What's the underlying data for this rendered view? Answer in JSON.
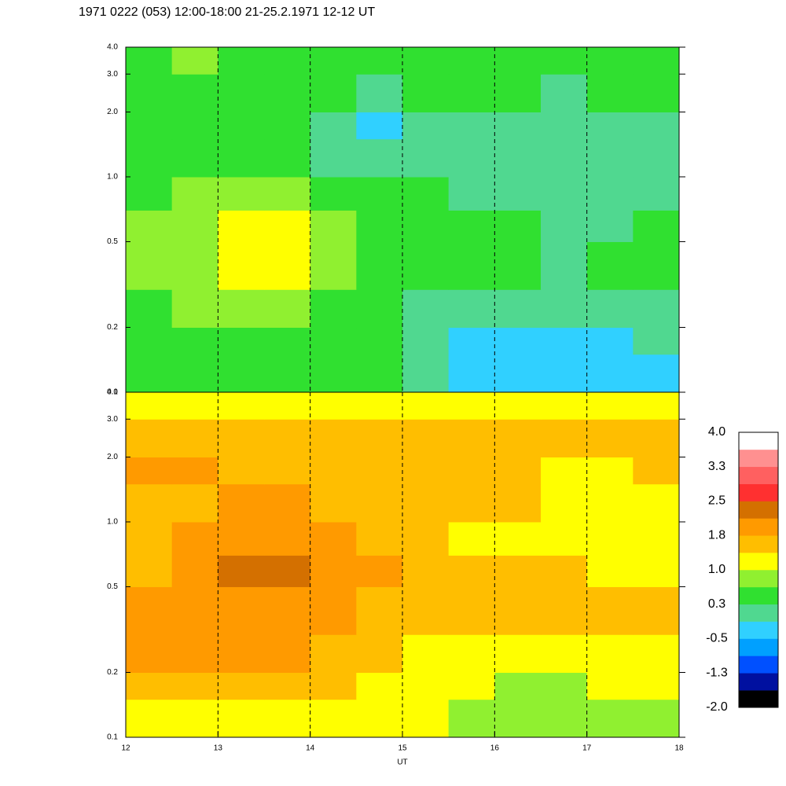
{
  "chart_data": {
    "type": "heatmap",
    "title": "1971 0222 (053) 12:00-18:00 21-25.2.1971  12-12 UT",
    "xlabel": "UT",
    "xlim": [
      12,
      18
    ],
    "xticks": [
      12,
      13,
      14,
      15,
      16,
      17,
      18
    ],
    "ylim": [
      0.1,
      4.0
    ],
    "log_y": true,
    "yticks": [
      0.1,
      0.2,
      0.5,
      {
        "value": 1.0,
        "label": "1.0"
      },
      {
        "value": 2.0,
        "label": "2.0"
      },
      {
        "value": 3.0,
        "label": "3.0"
      },
      {
        "value": 4.0,
        "label": "4.0"
      }
    ],
    "dashed_grid": true,
    "xbins": [
      12,
      12.5,
      13,
      13.5,
      14,
      14.5,
      15,
      15.5,
      16,
      16.5,
      17,
      17.5,
      18
    ],
    "ybins": [
      0.1,
      0.15,
      0.2,
      0.3,
      0.5,
      0.7,
      1.0,
      1.5,
      2.0,
      3.0,
      4.0
    ],
    "panels": [
      {
        "z": [
          [
            0.5,
            0.6,
            0.6,
            0.5,
            0.5,
            0.5,
            -0.1,
            -0.3,
            -0.3,
            -0.3,
            -0.3,
            -0.2
          ],
          [
            0.5,
            0.6,
            0.6,
            0.6,
            0.5,
            0.4,
            0.0,
            -0.2,
            -0.2,
            -0.3,
            -0.2,
            -0.1
          ],
          [
            0.6,
            0.7,
            0.8,
            0.8,
            0.5,
            0.4,
            0.2,
            0.1,
            0.1,
            0.0,
            0.1,
            0.1
          ],
          [
            0.7,
            0.9,
            1.1,
            1.0,
            0.7,
            0.5,
            0.4,
            0.3,
            0.3,
            0.2,
            0.3,
            0.3
          ],
          [
            0.8,
            0.9,
            1.1,
            1.0,
            0.8,
            0.5,
            0.4,
            0.3,
            0.3,
            0.2,
            0.2,
            0.3
          ],
          [
            0.5,
            0.7,
            0.9,
            0.8,
            0.6,
            0.4,
            0.3,
            0.2,
            0.2,
            0.1,
            0.1,
            0.2
          ],
          [
            0.3,
            0.5,
            0.5,
            0.4,
            0.2,
            0.0,
            0.1,
            0.1,
            0.1,
            -0.1,
            0.1,
            0.1
          ],
          [
            0.3,
            0.5,
            0.3,
            0.3,
            0.1,
            -0.2,
            0.1,
            0.2,
            0.2,
            0.0,
            0.1,
            0.2
          ],
          [
            0.4,
            0.5,
            0.4,
            0.4,
            0.3,
            0.1,
            0.3,
            0.4,
            0.4,
            0.2,
            0.3,
            0.4
          ],
          [
            0.6,
            0.7,
            0.6,
            0.6,
            0.5,
            0.5,
            0.5,
            0.6,
            0.6,
            0.5,
            0.5,
            0.6
          ]
        ]
      },
      {
        "z": [
          [
            1.2,
            1.3,
            1.3,
            1.2,
            1.1,
            1.1,
            1.0,
            0.8,
            0.7,
            0.7,
            0.7,
            0.7
          ],
          [
            1.6,
            1.6,
            1.6,
            1.5,
            1.4,
            1.3,
            1.1,
            1.0,
            0.9,
            0.9,
            1.0,
            1.0
          ],
          [
            1.8,
            1.8,
            1.9,
            1.8,
            1.7,
            1.6,
            1.3,
            1.2,
            1.2,
            1.2,
            1.2,
            1.2
          ],
          [
            1.8,
            1.9,
            2.1,
            2.1,
            1.9,
            1.7,
            1.6,
            1.6,
            1.6,
            1.5,
            1.6,
            1.5
          ],
          [
            1.7,
            1.9,
            2.2,
            2.2,
            2.0,
            1.8,
            1.5,
            1.4,
            1.4,
            1.4,
            1.3,
            1.3
          ],
          [
            1.6,
            1.8,
            2.1,
            2.0,
            1.8,
            1.6,
            1.4,
            1.3,
            1.3,
            1.3,
            1.2,
            1.2
          ],
          [
            1.6,
            1.6,
            1.8,
            1.8,
            1.6,
            1.5,
            1.4,
            1.4,
            1.4,
            1.3,
            1.3,
            1.3
          ],
          [
            1.8,
            1.8,
            1.6,
            1.6,
            1.5,
            1.4,
            1.4,
            1.4,
            1.4,
            1.3,
            1.3,
            1.4
          ],
          [
            1.6,
            1.6,
            1.6,
            1.6,
            1.5,
            1.5,
            1.5,
            1.5,
            1.5,
            1.5,
            1.5,
            1.5
          ],
          [
            1.0,
            1.0,
            1.0,
            1.0,
            1.0,
            1.0,
            1.0,
            1.0,
            1.0,
            1.0,
            1.0,
            1.0
          ]
        ]
      }
    ],
    "colorbar": {
      "clim": [
        -2,
        4
      ],
      "colors": [
        "#000000",
        "#0010a0",
        "#0050ff",
        "#00a0ff",
        "#30d0ff",
        "#50d890",
        "#30e030",
        "#90f030",
        "#ffff00",
        "#ffbe00",
        "#ff9a00",
        "#d47000",
        "#ff3030",
        "#ff6060",
        "#ff9090",
        "#ffffff"
      ],
      "ticks": [
        {
          "value": 4,
          "label": "4.0"
        },
        {
          "value": 3.25,
          "label": "3.3"
        },
        {
          "value": 2.5,
          "label": "2.5"
        },
        {
          "value": 1.75,
          "label": "1.8"
        },
        {
          "value": 1,
          "label": "1.0"
        },
        {
          "value": 0.25,
          "label": "0.3"
        },
        {
          "value": -0.5,
          "label": "-0.5"
        },
        {
          "value": -1.25,
          "label": "-1.3"
        },
        {
          "value": -2,
          "label": "-2.0"
        }
      ]
    }
  }
}
